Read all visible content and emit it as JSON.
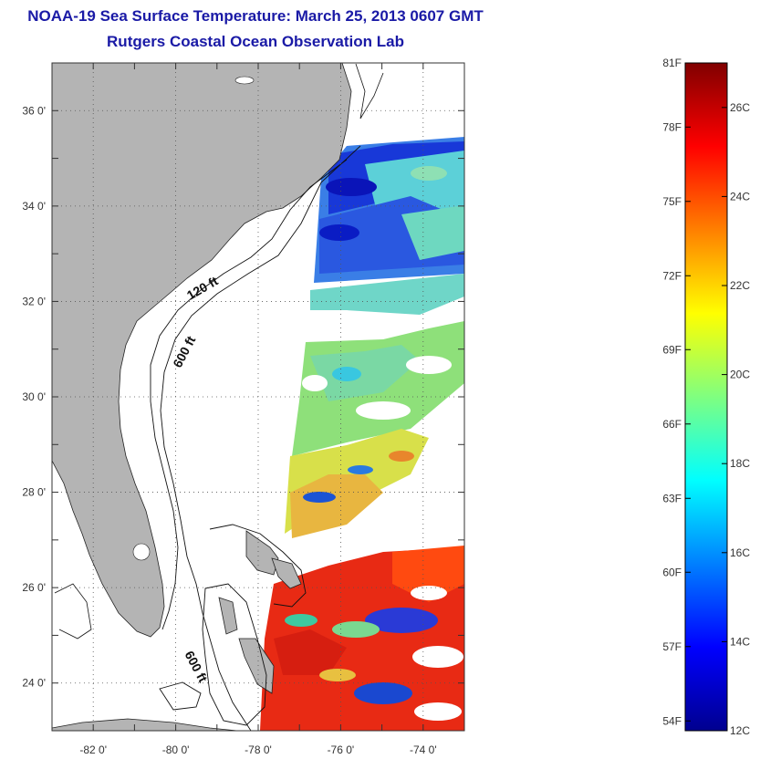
{
  "title": "NOAA-19 Sea Surface Temperature:  March 25, 2013 0607 GMT",
  "subtitle": "Rutgers Coastal Ocean Observation Lab",
  "colors": {
    "land": "#b4b4b4",
    "ocean": "#ffffff",
    "title": "#1a1aa6",
    "grid": "#555555"
  },
  "map": {
    "lon_range": [
      -83,
      -73
    ],
    "lat_range": [
      23,
      37
    ],
    "lon_ticks": [
      {
        "value": -82,
        "label": "-82 0'"
      },
      {
        "value": -80,
        "label": "-80 0'"
      },
      {
        "value": -78,
        "label": "-78 0'"
      },
      {
        "value": -76,
        "label": "-76 0'"
      },
      {
        "value": -74,
        "label": "-74 0'"
      }
    ],
    "lat_ticks": [
      {
        "value": 24,
        "label": "24 0'"
      },
      {
        "value": 26,
        "label": "26 0'"
      },
      {
        "value": 28,
        "label": "28 0'"
      },
      {
        "value": 30,
        "label": "30 0'"
      },
      {
        "value": 32,
        "label": "32 0'"
      },
      {
        "value": 34,
        "label": "34 0'"
      },
      {
        "value": 36,
        "label": "36 0'"
      }
    ],
    "contour_labels": [
      {
        "text": "120 ft",
        "lon": -79.3,
        "lat": 32.2,
        "angle": -30
      },
      {
        "text": "600 ft",
        "lon": -79.7,
        "lat": 30.9,
        "angle": -62
      },
      {
        "text": "600 ft",
        "lon": -79.6,
        "lat": 24.3,
        "angle": 62
      }
    ],
    "sst_regions": [
      {
        "name": "carolina-sst",
        "lat": [
          33.0,
          35.1
        ],
        "tempC": 15.0
      },
      {
        "name": "georgia-sst",
        "lat": [
          29.5,
          31.5
        ],
        "tempC": 19.5
      },
      {
        "name": "north-florida-sst",
        "lat": [
          27.5,
          29.0
        ],
        "tempC": 21.5
      },
      {
        "name": "bahamas-sst",
        "lat": [
          23.0,
          26.8
        ],
        "tempC": 25.5
      }
    ]
  },
  "colorbar": {
    "c_range": [
      12,
      27
    ],
    "f_ticks": [
      {
        "value": 12.22,
        "label": "54F"
      },
      {
        "value": 13.89,
        "label": "57F"
      },
      {
        "value": 15.56,
        "label": "60F"
      },
      {
        "value": 17.22,
        "label": "63F"
      },
      {
        "value": 18.89,
        "label": "66F"
      },
      {
        "value": 20.56,
        "label": "69F"
      },
      {
        "value": 22.22,
        "label": "72F"
      },
      {
        "value": 23.89,
        "label": "75F"
      },
      {
        "value": 25.56,
        "label": "78F"
      },
      {
        "value": 27.22,
        "label": "81F"
      }
    ],
    "c_ticks": [
      {
        "value": 12,
        "label": "12C"
      },
      {
        "value": 14,
        "label": "14C"
      },
      {
        "value": 16,
        "label": "16C"
      },
      {
        "value": 18,
        "label": "18C"
      },
      {
        "value": 20,
        "label": "20C"
      },
      {
        "value": 22,
        "label": "22C"
      },
      {
        "value": 24,
        "label": "24C"
      },
      {
        "value": 26,
        "label": "26C"
      }
    ]
  }
}
